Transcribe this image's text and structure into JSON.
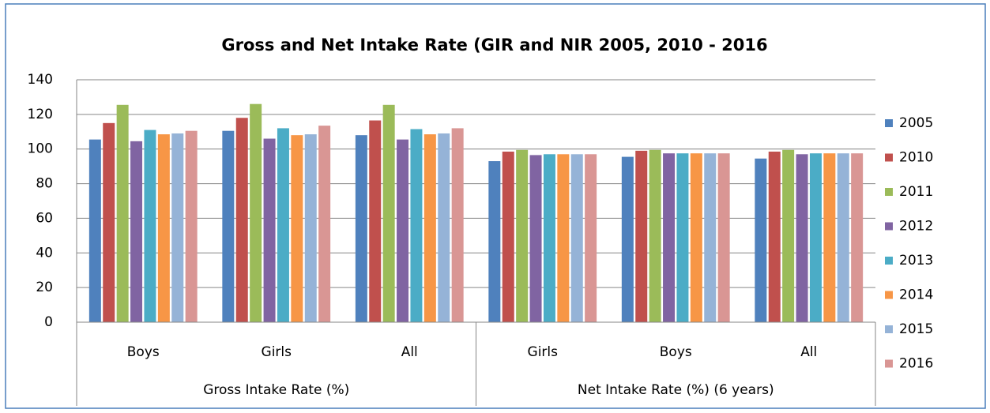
{
  "chart_data": {
    "type": "bar",
    "title": "Gross and Net Intake Rate (GIR and NIR 2005, 2010 - 2016",
    "categories": [
      "Boys",
      "Girls",
      "All",
      "Girls",
      "Boys",
      "All"
    ],
    "category_groups": [
      {
        "label": "Gross Intake Rate (%)",
        "size": 3
      },
      {
        "label": "Net Intake Rate (%) (6 years)",
        "size": 3
      }
    ],
    "series": [
      {
        "name": "2005",
        "color": "#4f81bd",
        "values": [
          105.5,
          110.5,
          108,
          93,
          95.5,
          94.5
        ]
      },
      {
        "name": "2010",
        "color": "#c0504d",
        "values": [
          115,
          118,
          116.5,
          98.5,
          99,
          98.5
        ]
      },
      {
        "name": "2011",
        "color": "#9bbb59",
        "values": [
          125.5,
          126,
          125.5,
          99.5,
          99.5,
          99.5
        ]
      },
      {
        "name": "2012",
        "color": "#8064a2",
        "values": [
          104.5,
          106,
          105.5,
          96.5,
          97.5,
          97
        ]
      },
      {
        "name": "2013",
        "color": "#4bacc6",
        "values": [
          111,
          112,
          111.5,
          97,
          97.5,
          97.5
        ]
      },
      {
        "name": "2014",
        "color": "#f79646",
        "values": [
          108.5,
          108,
          108.5,
          97,
          97.5,
          97.5
        ]
      },
      {
        "name": "2015",
        "color": "#95b3d7",
        "values": [
          109,
          108.5,
          109,
          97,
          97.5,
          97.5
        ]
      },
      {
        "name": "2016",
        "color": "#d99694",
        "values": [
          110.5,
          113.5,
          112,
          97,
          97.5,
          97.5
        ]
      }
    ],
    "ylim": [
      0,
      140
    ],
    "yticks": [
      0,
      20,
      40,
      60,
      80,
      100,
      120,
      140
    ],
    "grid": true,
    "legend": "right"
  }
}
